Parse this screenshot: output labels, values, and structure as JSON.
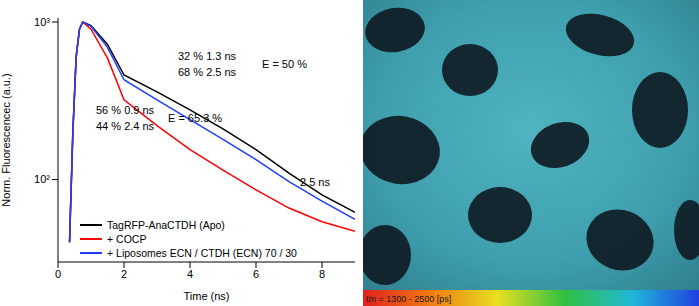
{
  "chart_data": {
    "type": "line",
    "x_label": "Time (ns)",
    "y_label": "Norm. Fluorescencec (a.u.)",
    "log": "y",
    "x": [
      0.35,
      0.45,
      0.55,
      0.65,
      0.75,
      1,
      1.5,
      2,
      3,
      4,
      5,
      6,
      7,
      8,
      9
    ],
    "xlim": [
      0,
      9
    ],
    "xticks": [
      0,
      2,
      4,
      6,
      8
    ],
    "ylim": [
      30,
      1060
    ],
    "yticks": [
      {
        "value": 100,
        "label": "10²"
      },
      {
        "value": 1000,
        "label": "10³"
      }
    ],
    "series": [
      {
        "name": "TagRFP-AnaCTDH (Apo)",
        "color": "#000000",
        "values": [
          40,
          200,
          600,
          900,
          1000,
          950,
          720,
          461,
          360,
          277,
          210,
          155,
          110,
          80,
          62
        ]
      },
      {
        "name": "+ COCP",
        "color": "#ff0000",
        "values": [
          40,
          200,
          600,
          900,
          1000,
          900,
          590,
          321,
          220,
          155,
          115,
          86,
          66,
          54,
          47
        ]
      },
      {
        "name": "+ Liposomes ECN / CTDH (ECN) 70 / 30",
        "color": "#1f3fff",
        "values": [
          40,
          200,
          600,
          900,
          1000,
          940,
          690,
          430,
          320,
          240,
          180,
          134,
          97,
          73,
          56
        ]
      }
    ],
    "annotations": [
      "32 % 1.3 ns",
      "68 % 2.5 ns",
      "E = 50 %",
      "56 % 0.9 ns",
      "44 % 2.4 ns",
      "E = 65.3 %",
      "2.5 ns"
    ]
  },
  "image": {
    "colorbar_label": "tm = 1300 - 2500 [ps]"
  }
}
